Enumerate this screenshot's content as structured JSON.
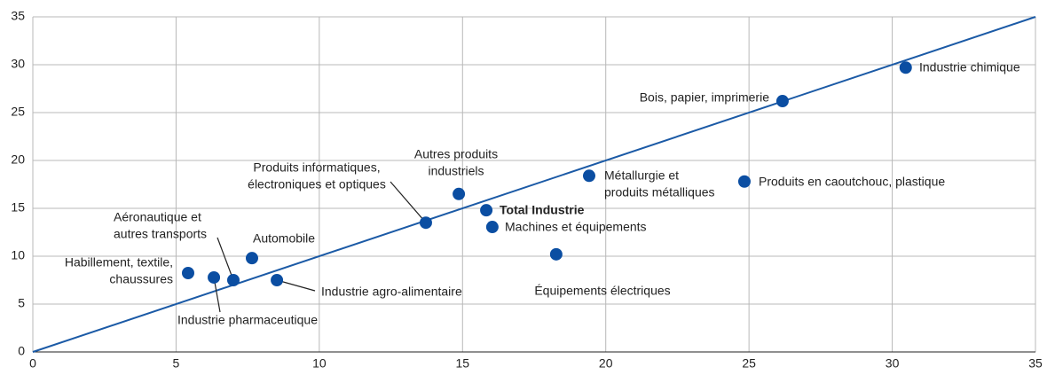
{
  "chart_data": {
    "type": "scatter",
    "xlim": [
      0,
      35
    ],
    "ylim": [
      0,
      35
    ],
    "xticks": [
      0,
      5,
      10,
      15,
      20,
      25,
      30,
      35
    ],
    "yticks": [
      0,
      5,
      10,
      15,
      20,
      25,
      30,
      35
    ],
    "grid": true,
    "color": "#0b4ea2",
    "line": {
      "x": [
        0,
        35
      ],
      "y": [
        0,
        35
      ],
      "color": "#1b5aa6"
    },
    "points": [
      {
        "label": [
          "Habillement, textile,",
          "chaussures"
        ],
        "x": 5.42,
        "y": 8.24
      },
      {
        "label": [
          "Industrie pharmaceutique"
        ],
        "x": 6.32,
        "y": 7.78
      },
      {
        "label": [
          "Aéronautique et",
          "autres transports"
        ],
        "x": 7.0,
        "y": 7.5
      },
      {
        "label": [
          "Automobile"
        ],
        "x": 7.65,
        "y": 9.8
      },
      {
        "label": [
          "Industrie agro-alimentaire"
        ],
        "x": 8.52,
        "y": 7.5
      },
      {
        "label": [
          "Produits informatiques,",
          "électroniques et optiques"
        ],
        "x": 13.72,
        "y": 13.5
      },
      {
        "label": [
          "Autres produits",
          "industriels"
        ],
        "x": 14.87,
        "y": 16.5
      },
      {
        "label": [
          "Total Industrie"
        ],
        "x": 15.83,
        "y": 14.8
      },
      {
        "label": [
          "Machines et équipements"
        ],
        "x": 16.04,
        "y": 13.05
      },
      {
        "label": [
          "Équipements électriques"
        ],
        "x": 18.27,
        "y": 10.2
      },
      {
        "label": [
          "Métallurgie et",
          "produits métalliques"
        ],
        "x": 19.42,
        "y": 18.4
      },
      {
        "label": [
          "Produits en caoutchouc, plastique"
        ],
        "x": 24.84,
        "y": 17.8
      },
      {
        "label": [
          "Bois, papier, imprimerie"
        ],
        "x": 26.17,
        "y": 26.2
      },
      {
        "label": [
          "Industrie chimique"
        ],
        "x": 30.47,
        "y": 29.7
      }
    ]
  }
}
